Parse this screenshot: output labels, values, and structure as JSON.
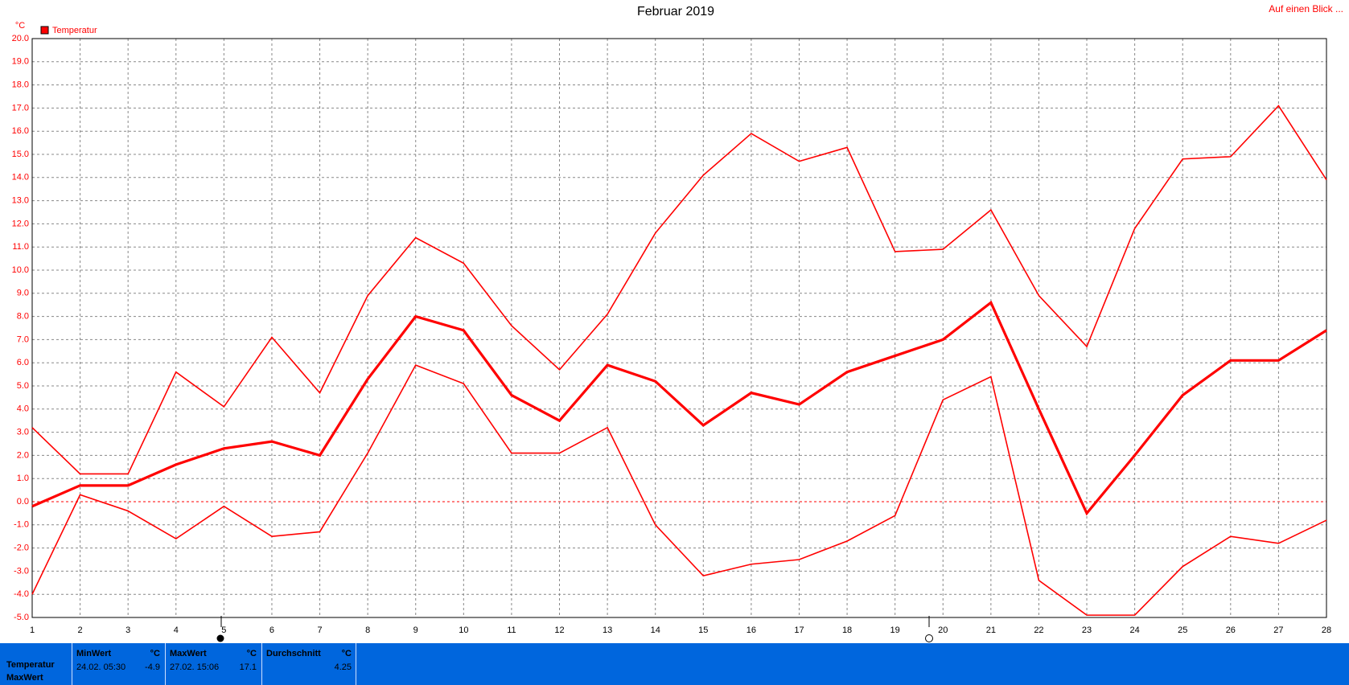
{
  "chart_data": {
    "type": "line",
    "title": "Februar 2019",
    "y_unit": "°C",
    "link": "Auf einen Blick ...",
    "legend": "Temperatur",
    "legend_color": "#ff0000",
    "x": [
      1,
      2,
      3,
      4,
      5,
      6,
      7,
      8,
      9,
      10,
      11,
      12,
      13,
      14,
      15,
      16,
      17,
      18,
      19,
      20,
      21,
      22,
      23,
      24,
      25,
      26,
      27,
      28
    ],
    "xlim": [
      1,
      28
    ],
    "xticks": [
      1,
      2,
      3,
      4,
      5,
      6,
      7,
      8,
      9,
      10,
      11,
      12,
      13,
      14,
      15,
      16,
      17,
      18,
      19,
      20,
      21,
      22,
      23,
      24,
      25,
      26,
      27,
      28
    ],
    "ylim": [
      -5,
      20
    ],
    "yticks": [
      {
        "value": -5,
        "label": "-5.0"
      },
      {
        "value": -4,
        "label": "-4.0"
      },
      {
        "value": -3,
        "label": "-3.0"
      },
      {
        "value": -2,
        "label": "-2.0"
      },
      {
        "value": -1,
        "label": "-1.0"
      },
      {
        "value": 0,
        "label": "0.0"
      },
      {
        "value": 1,
        "label": "1.0"
      },
      {
        "value": 2,
        "label": "2.0"
      },
      {
        "value": 3,
        "label": "3.0"
      },
      {
        "value": 4,
        "label": "4.0"
      },
      {
        "value": 5,
        "label": "5.0"
      },
      {
        "value": 6,
        "label": "6.0"
      },
      {
        "value": 7,
        "label": "7.0"
      },
      {
        "value": 8,
        "label": "8.0"
      },
      {
        "value": 9,
        "label": "9.0"
      },
      {
        "value": 10,
        "label": "10.0"
      },
      {
        "value": 11,
        "label": "11.0"
      },
      {
        "value": 12,
        "label": "12.0"
      },
      {
        "value": 13,
        "label": "13.0"
      },
      {
        "value": 14,
        "label": "14.0"
      },
      {
        "value": 15,
        "label": "15.0"
      },
      {
        "value": 16,
        "label": "16.0"
      },
      {
        "value": 17,
        "label": "17.0"
      },
      {
        "value": 18,
        "label": "18.0"
      },
      {
        "value": 19,
        "label": "19.0"
      },
      {
        "value": 20,
        "label": "20.0"
      }
    ],
    "grid": true,
    "series": [
      {
        "color": "#ff0000",
        "width": 1.6,
        "values": [
          3.2,
          1.2,
          1.2,
          5.6,
          4.1,
          7.1,
          4.7,
          8.9,
          11.4,
          10.3,
          7.6,
          5.7,
          8.1,
          11.6,
          14.1,
          15.9,
          14.7,
          15.3,
          10.8,
          10.9,
          12.6,
          8.9,
          6.7,
          11.8,
          14.8,
          14.9,
          17.1,
          13.9
        ]
      },
      {
        "color": "#ff0000",
        "width": 3.2,
        "values": [
          -0.2,
          0.7,
          0.7,
          1.6,
          2.3,
          2.6,
          2.0,
          5.3,
          8.0,
          7.4,
          4.6,
          3.5,
          5.9,
          5.2,
          3.3,
          4.7,
          4.2,
          5.6,
          6.3,
          7.0,
          8.6,
          4.0,
          -0.5,
          2.0,
          4.6,
          6.1,
          6.1,
          7.4
        ]
      },
      {
        "color": "#ff0000",
        "width": 1.6,
        "values": [
          -4.0,
          0.3,
          -0.4,
          -1.6,
          -0.2,
          -1.5,
          -1.3,
          2.1,
          5.9,
          5.1,
          2.1,
          2.1,
          3.2,
          -1.0,
          -3.2,
          -2.7,
          -2.5,
          -1.7,
          -0.6,
          4.4,
          5.4,
          -3.4,
          -4.9,
          -4.9,
          -2.8,
          -1.5,
          -1.8,
          -0.8
        ]
      }
    ]
  },
  "summary": {
    "row_label": "Temperatur",
    "row_label2": "MaxWert",
    "min": {
      "title": "MinWert",
      "unit": "°C",
      "time": "24.02. 05:30",
      "value": -4.9
    },
    "max": {
      "title": "MaxWert",
      "unit": "°C",
      "time": "27.02. 15:06",
      "value": 17.1
    },
    "avg": {
      "title": "Durchschnitt",
      "unit": "°C",
      "value": 4.25
    }
  }
}
